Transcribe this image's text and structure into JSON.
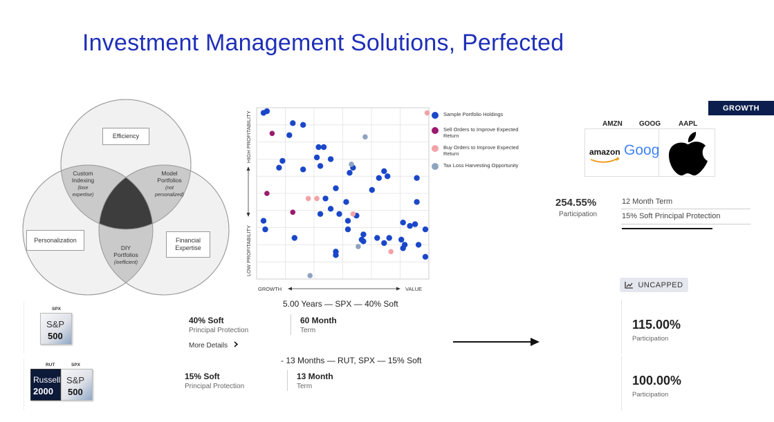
{
  "title": "Investment Management Solutions, Perfected",
  "venn": {
    "efficiency": "Efficiency",
    "personalization": "Personalization",
    "financial_expertise": [
      "Financial",
      "Expertise"
    ],
    "custom_indexing": [
      "Custom",
      "Indexing"
    ],
    "custom_indexing_note": [
      "(lose",
      "expertise)"
    ],
    "model_portfolios": [
      "Model",
      "Portfolios"
    ],
    "model_portfolios_note": [
      "(not",
      "personalized)"
    ],
    "diy_portfolios": [
      "DIY",
      "Portfolios"
    ],
    "diy_portfolios_note": "(inefficient)"
  },
  "chart_data": {
    "type": "scatter",
    "xlabel_left": "GROWTH",
    "xlabel_right": "VALUE",
    "ylabel_top": "HIGH PROFITABILITY",
    "ylabel_bottom": "LOW PROFITABILITY",
    "xlim": [
      0,
      100
    ],
    "ylim": [
      0,
      100
    ],
    "grid": true,
    "legend_position": "right",
    "series": [
      {
        "name": "Sample Portfolio Holdings",
        "color": "#1a47c9",
        "points": [
          [
            4,
            97
          ],
          [
            6,
            98
          ],
          [
            21,
            91
          ],
          [
            27,
            90
          ],
          [
            19,
            84
          ],
          [
            36,
            77
          ],
          [
            39,
            77
          ],
          [
            15,
            69
          ],
          [
            13,
            65
          ],
          [
            35,
            71
          ],
          [
            43,
            70
          ],
          [
            37,
            66
          ],
          [
            56,
            65
          ],
          [
            54,
            62
          ],
          [
            74,
            63
          ],
          [
            76,
            60
          ],
          [
            71,
            59
          ],
          [
            93,
            59
          ],
          [
            27,
            64
          ],
          [
            46,
            53
          ],
          [
            40,
            47
          ],
          [
            43,
            41
          ],
          [
            37,
            38
          ],
          [
            48,
            38
          ],
          [
            53,
            34
          ],
          [
            58,
            37
          ],
          [
            67,
            52
          ],
          [
            93,
            45
          ],
          [
            92,
            32
          ],
          [
            98,
            29
          ],
          [
            85,
            33
          ],
          [
            89,
            31
          ],
          [
            84,
            23
          ],
          [
            86,
            20
          ],
          [
            62,
            26
          ],
          [
            70,
            24
          ],
          [
            77,
            24
          ],
          [
            85,
            18
          ],
          [
            94,
            20
          ],
          [
            98,
            13
          ],
          [
            52,
            45
          ],
          [
            4,
            34
          ],
          [
            5,
            29
          ],
          [
            22,
            24
          ],
          [
            61,
            23
          ],
          [
            46,
            16
          ],
          [
            74,
            21
          ],
          [
            53,
            29
          ],
          [
            46,
            14
          ],
          [
            62,
            22
          ]
        ]
      },
      {
        "name": "Sell Orders to Improve Expected Return",
        "color": "#9b1a6e",
        "points": [
          [
            9,
            85
          ],
          [
            6,
            50
          ],
          [
            21,
            39
          ]
        ]
      },
      {
        "name": "Buy Orders to Improve Expected Return",
        "color": "#f2a3a8",
        "points": [
          [
            99,
            97
          ],
          [
            30,
            47
          ],
          [
            35,
            47
          ],
          [
            56,
            38
          ],
          [
            78,
            16
          ]
        ]
      },
      {
        "name": "Tax Loss Harvesting Opportunity",
        "color": "#8fa3bf",
        "points": [
          [
            63,
            83
          ],
          [
            55,
            67
          ],
          [
            59,
            19
          ],
          [
            31,
            2
          ]
        ]
      }
    ]
  },
  "stock_card": {
    "badge": "GROWTH",
    "tickers": [
      "AMZN",
      "GOOG",
      "AAPL"
    ],
    "amazon_logo": "amazon",
    "google_logo": "Goog",
    "participation_value": "254.55%",
    "participation_label": "Participation",
    "term": "12 Month Term",
    "protection": "15% Soft Principal Protection"
  },
  "uncapped": {
    "label": "UNCAPPED",
    "icon": "chart-line-icon"
  },
  "product1": {
    "header": "5.00 Years — SPX — 40% Soft",
    "ticker": "SPX",
    "logo_top": "S&P",
    "logo_bottom": "500",
    "protection_value": "40% Soft",
    "protection_label": "Principal Protection",
    "term_value": "60 Month",
    "term_label": "Term",
    "more_details": "More Details",
    "participation_value": "115.00%",
    "participation_label": "Participation"
  },
  "product2": {
    "header": "- 13 Months — RUT, SPX — 15% Soft",
    "ticker_rut": "RUT",
    "ticker_spx": "SPX",
    "rut_top": "Russell",
    "rut_bottom": "2000",
    "spx_top": "S&P",
    "spx_bottom": "500",
    "protection_value": "15% Soft",
    "protection_label": "Principal Protection",
    "term_value": "13 Month",
    "term_label": "Term",
    "participation_value": "100.00%",
    "participation_label": "Participation"
  }
}
